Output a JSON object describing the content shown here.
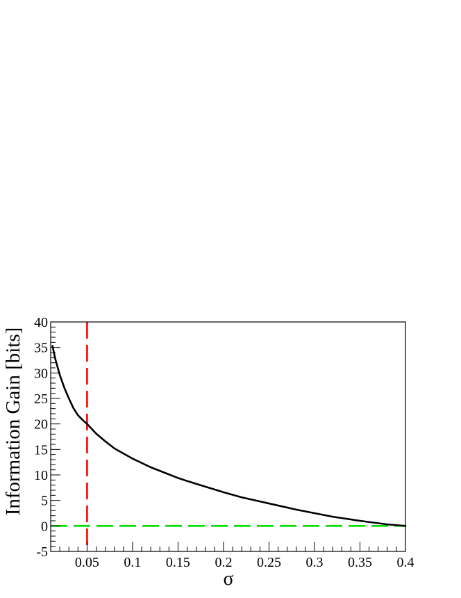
{
  "chart_data": {
    "type": "line",
    "title": "",
    "xlabel": "σ",
    "ylabel": "Information Gain [bits]",
    "xlim": [
      0.01,
      0.4
    ],
    "ylim": [
      -5,
      40
    ],
    "x_ticks": [
      0.05,
      0.1,
      0.15,
      0.2,
      0.25,
      0.3,
      0.35,
      0.4
    ],
    "y_ticks": [
      -5,
      0,
      5,
      10,
      15,
      20,
      25,
      30,
      35,
      40
    ],
    "grid": false,
    "series": [
      {
        "color": "#000000",
        "style": "solid",
        "x": [
          0.012,
          0.015,
          0.02,
          0.025,
          0.03,
          0.035,
          0.04,
          0.045,
          0.05,
          0.06,
          0.07,
          0.08,
          0.09,
          0.1,
          0.12,
          0.14,
          0.15,
          0.16,
          0.18,
          0.2,
          0.22,
          0.25,
          0.28,
          0.3,
          0.32,
          0.35,
          0.38,
          0.4
        ],
        "y": [
          35.3,
          32.8,
          29.6,
          27.1,
          25.0,
          23.1,
          21.7,
          20.8,
          20.0,
          18.1,
          16.6,
          15.2,
          14.2,
          13.2,
          11.5,
          10.1,
          9.4,
          8.8,
          7.7,
          6.6,
          5.6,
          4.4,
          3.2,
          2.5,
          1.8,
          1.0,
          0.3,
          0.0
        ]
      }
    ],
    "reference_lines": [
      {
        "orientation": "vertical",
        "value": 0.05,
        "color": "#ff0000",
        "style": "dashed"
      },
      {
        "orientation": "horizontal",
        "value": 0,
        "color": "#00dd00",
        "style": "dashed"
      }
    ]
  }
}
